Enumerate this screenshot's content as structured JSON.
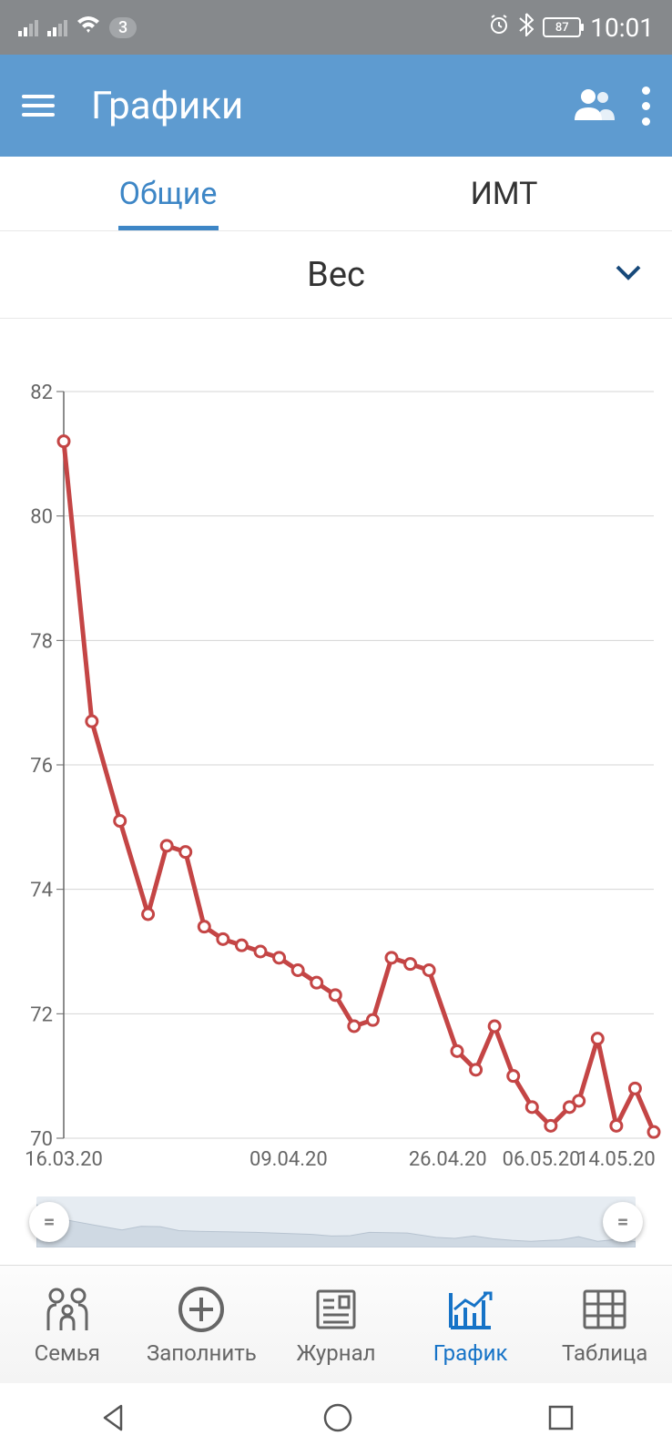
{
  "status": {
    "badge": "3",
    "battery": "87",
    "time": "10:01"
  },
  "header": {
    "title": "Графики"
  },
  "tabs": {
    "items": [
      "Общие",
      "ИМТ"
    ],
    "active_index": 0,
    "active_color": "#3d86c6",
    "inactive_color": "#333333"
  },
  "dropdown": {
    "label": "Вес",
    "chevron_color": "#17497a"
  },
  "chart": {
    "type": "line",
    "line_color": "#c44545",
    "line_width": 5,
    "marker_fill": "#ffffff",
    "marker_stroke": "#c44545",
    "marker_radius": 6,
    "background_color": "#ffffff",
    "grid_color": "#d5d5d5",
    "axis_font_size": 22,
    "axis_color": "#666666",
    "ylim": [
      70,
      82
    ],
    "ytick_step": 2,
    "ytick_labels": [
      "70",
      "72",
      "74",
      "76",
      "78",
      "80",
      "82"
    ],
    "xtick_labels": [
      "16.03.20",
      "09.04.20",
      "26.04.20",
      "06.05.20",
      "14.05.20"
    ],
    "xtick_positions": [
      0,
      24,
      41,
      51,
      59
    ],
    "x_range": [
      0,
      63
    ],
    "points": [
      {
        "x": 0,
        "y": 81.2
      },
      {
        "x": 3,
        "y": 76.7
      },
      {
        "x": 6,
        "y": 75.1
      },
      {
        "x": 9,
        "y": 73.6
      },
      {
        "x": 11,
        "y": 74.7
      },
      {
        "x": 13,
        "y": 74.6
      },
      {
        "x": 15,
        "y": 73.4
      },
      {
        "x": 17,
        "y": 73.2
      },
      {
        "x": 19,
        "y": 73.1
      },
      {
        "x": 21,
        "y": 73.0
      },
      {
        "x": 23,
        "y": 72.9
      },
      {
        "x": 25,
        "y": 72.7
      },
      {
        "x": 27,
        "y": 72.5
      },
      {
        "x": 29,
        "y": 72.3
      },
      {
        "x": 31,
        "y": 71.8
      },
      {
        "x": 33,
        "y": 71.9
      },
      {
        "x": 35,
        "y": 72.9
      },
      {
        "x": 37,
        "y": 72.8
      },
      {
        "x": 39,
        "y": 72.7
      },
      {
        "x": 42,
        "y": 71.4
      },
      {
        "x": 44,
        "y": 71.1
      },
      {
        "x": 46,
        "y": 71.8
      },
      {
        "x": 48,
        "y": 71.0
      },
      {
        "x": 50,
        "y": 70.5
      },
      {
        "x": 52,
        "y": 70.2
      },
      {
        "x": 54,
        "y": 70.5
      },
      {
        "x": 55,
        "y": 70.6
      },
      {
        "x": 57,
        "y": 71.6
      },
      {
        "x": 59,
        "y": 70.2
      },
      {
        "x": 61,
        "y": 70.8
      },
      {
        "x": 63,
        "y": 70.1
      }
    ]
  },
  "bottom_nav": {
    "items": [
      {
        "label": "Семья",
        "icon": "family"
      },
      {
        "label": "Заполнить",
        "icon": "plus"
      },
      {
        "label": "Журнал",
        "icon": "journal"
      },
      {
        "label": "График",
        "icon": "chart"
      },
      {
        "label": "Таблица",
        "icon": "table"
      }
    ],
    "active_index": 3,
    "active_color": "#1673c7",
    "inactive_color": "#666666"
  }
}
